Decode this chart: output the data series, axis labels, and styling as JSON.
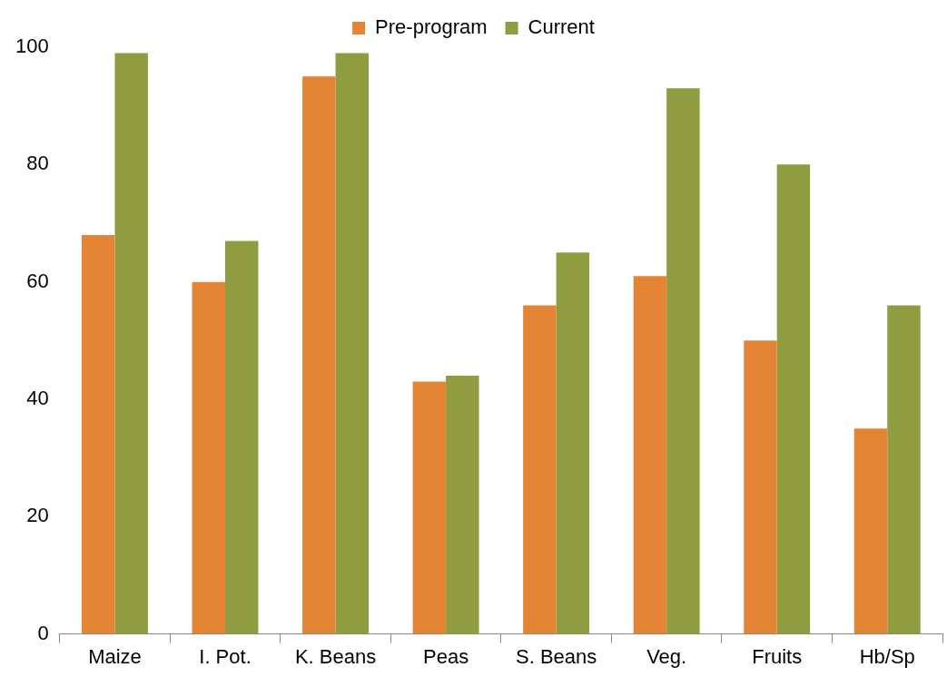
{
  "chart_data": {
    "type": "bar",
    "categories": [
      "Maize",
      "I. Pot.",
      "K. Beans",
      "Peas",
      "S. Beans",
      "Veg.",
      "Fruits",
      "Hb/Sp"
    ],
    "series": [
      {
        "name": "Pre-program",
        "color": "#e38535",
        "values": [
          68,
          60,
          95,
          43,
          56,
          61,
          50,
          35
        ]
      },
      {
        "name": "Current",
        "color": "#8f9c3f",
        "values": [
          99,
          67,
          99,
          44,
          65,
          93,
          80,
          56
        ]
      }
    ],
    "ylim": [
      0,
      100
    ],
    "yticks": [
      0,
      20,
      40,
      60,
      80,
      100
    ],
    "grid": false,
    "legend": "top"
  }
}
